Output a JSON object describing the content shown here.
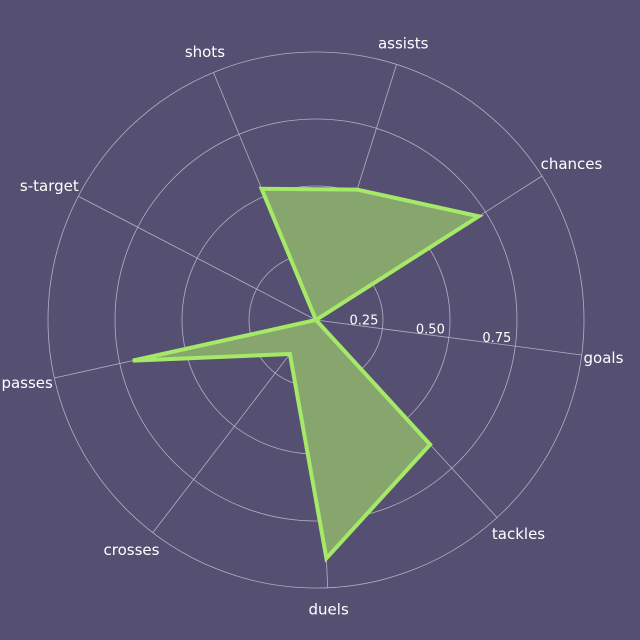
{
  "colors": {
    "background": "#555072",
    "grid": "#b2b0c2",
    "line": "#a6e868",
    "fill": "#86a66e"
  },
  "chart_data": {
    "type": "radar",
    "title": "",
    "categories": [
      "goals",
      "chances",
      "assists",
      "shots",
      "s-target",
      "passes",
      "crosses",
      "duels",
      "tackles"
    ],
    "series": [
      {
        "values": [
          0.0,
          0.72,
          0.51,
          0.53,
          0.0,
          0.7,
          0.16,
          0.89,
          0.63
        ]
      }
    ],
    "rlim": [
      0,
      1.0
    ],
    "rticks": [
      0.25,
      0.5,
      0.75
    ],
    "rtick_labels": [
      "0.25",
      "0.50",
      "0.75"
    ],
    "grid": true
  }
}
